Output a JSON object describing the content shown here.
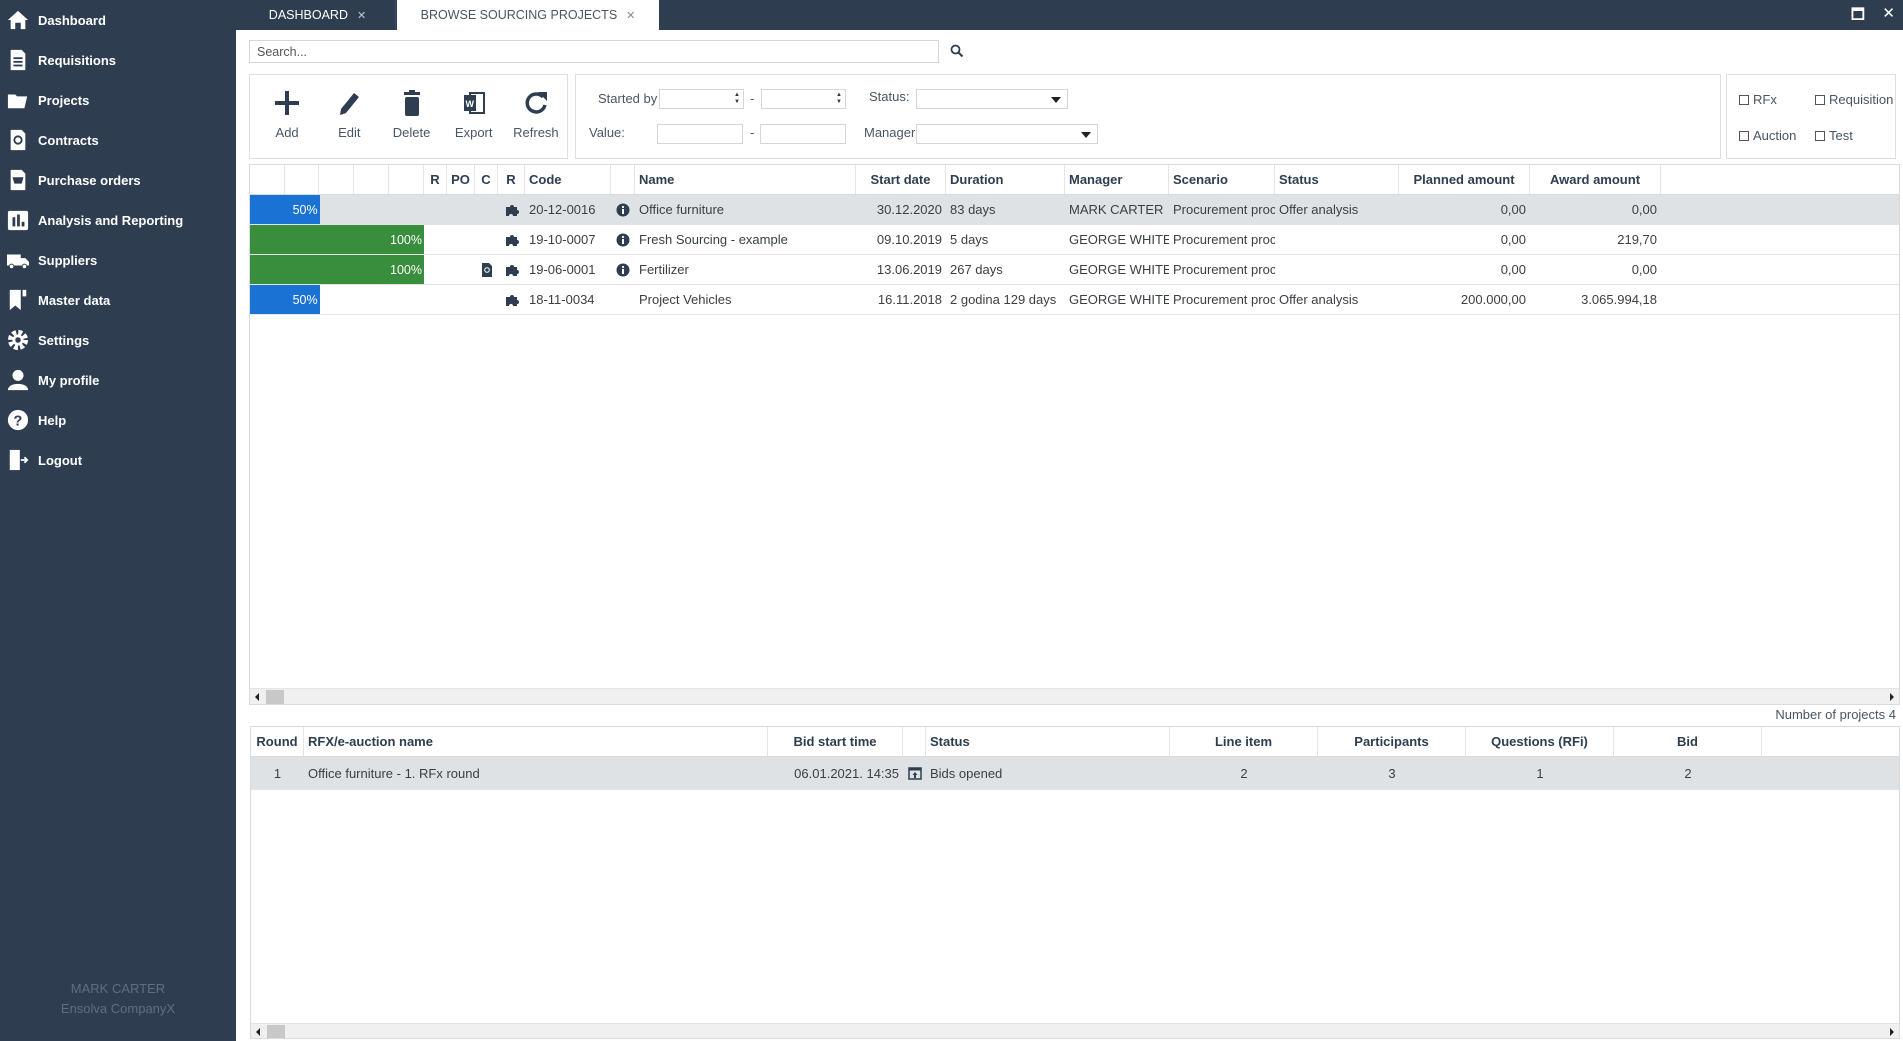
{
  "sidebar": {
    "items": [
      {
        "label": "Dashboard",
        "icon": "home-icon"
      },
      {
        "label": "Requisitions",
        "icon": "document-list-icon"
      },
      {
        "label": "Projects",
        "icon": "folder-open-icon"
      },
      {
        "label": "Contracts",
        "icon": "contract-icon"
      },
      {
        "label": "Purchase orders",
        "icon": "cart-document-icon"
      },
      {
        "label": "Analysis and Reporting",
        "icon": "bar-chart-icon"
      },
      {
        "label": "Suppliers",
        "icon": "truck-icon"
      },
      {
        "label": "Master data",
        "icon": "bookmark-icon"
      },
      {
        "label": "Settings",
        "icon": "gear-icon"
      },
      {
        "label": "My profile",
        "icon": "user-icon"
      },
      {
        "label": "Help",
        "icon": "help-icon"
      },
      {
        "label": "Logout",
        "icon": "logout-icon"
      }
    ],
    "user_name": "MARK CARTER",
    "company": "Ensolva CompanyX"
  },
  "tabs": [
    {
      "label": "DASHBOARD",
      "active": false
    },
    {
      "label": "BROWSE SOURCING PROJECTS",
      "active": true
    }
  ],
  "search": {
    "placeholder": "Search..."
  },
  "toolbar": {
    "add": "Add",
    "edit": "Edit",
    "delete": "Delete",
    "export": "Export",
    "refresh": "Refresh"
  },
  "filters": {
    "started_by": "Started by",
    "dash": "-",
    "status": "Status:",
    "value": "Value:",
    "manager": "Manager"
  },
  "checkboxes": {
    "rfx": "RFx",
    "requisition": "Requisition",
    "auction": "Auction",
    "test": "Test"
  },
  "projects": {
    "headers": [
      "",
      "",
      "",
      "",
      "",
      "R",
      "PO",
      "C",
      "R",
      "Code",
      "",
      "Name",
      "Start date",
      "Duration",
      "Manager",
      "Scenario",
      "Status",
      "Planned amount",
      "Award amount"
    ],
    "rows": [
      {
        "progress": "50%",
        "progress_value": 50,
        "progress_color": "#1a73d4",
        "type_icon": "puzzle-icon",
        "contract_icon": false,
        "code": "20-12-0016",
        "info": true,
        "name": "Office furniture",
        "start": "30.12.2020",
        "duration": "83 days",
        "manager": "MARK CARTER",
        "scenario": "Procurement proc",
        "status": "Offer analysis",
        "planned": "0,00",
        "award": "0,00",
        "selected": true
      },
      {
        "progress": "100%",
        "progress_value": 100,
        "progress_color": "#388e3c",
        "type_icon": "puzzle-icon",
        "contract_icon": false,
        "code": "19-10-0007",
        "info": true,
        "name": "Fresh Sourcing - example",
        "start": "09.10.2019",
        "duration": "5 days",
        "manager": "GEORGE WHITE",
        "scenario": "Procurement proc",
        "status": "",
        "planned": "0,00",
        "award": "219,70",
        "selected": false
      },
      {
        "progress": "100%",
        "progress_value": 100,
        "progress_color": "#388e3c",
        "type_icon": "puzzle-split-icon",
        "contract_icon": true,
        "code": "19-06-0001",
        "info": true,
        "name": "Fertilizer",
        "start": "13.06.2019",
        "duration": "267 days",
        "manager": "GEORGE WHITE",
        "scenario": "Procurement proc",
        "status": "",
        "planned": "0,00",
        "award": "0,00",
        "selected": false
      },
      {
        "progress": "50%",
        "progress_value": 50,
        "progress_color": "#1a73d4",
        "type_icon": "puzzle-icon",
        "contract_icon": false,
        "code": "18-11-0034",
        "info": false,
        "name": "Project Vehicles",
        "start": "16.11.2018",
        "duration": "2 godina 129 days",
        "manager": "GEORGE WHITE",
        "scenario": "Procurement proc",
        "status": "Offer analysis",
        "planned": "200.000,00",
        "award": "3.065.994,18",
        "selected": false
      }
    ],
    "count_label": "Number of projects 4"
  },
  "rounds": {
    "headers": [
      "Round",
      "RFX/e-auction name",
      "Bid start time",
      "",
      "Status",
      "Line item",
      "Participants",
      "Questions (RFi)",
      "Bid"
    ],
    "rows": [
      {
        "round": "1",
        "name": "Office furniture - 1. RFx round",
        "bid_start": "06.01.2021. 14:35",
        "status": "Bids opened",
        "line_item": "2",
        "participants": "3",
        "questions": "1",
        "bid": "2"
      }
    ]
  }
}
